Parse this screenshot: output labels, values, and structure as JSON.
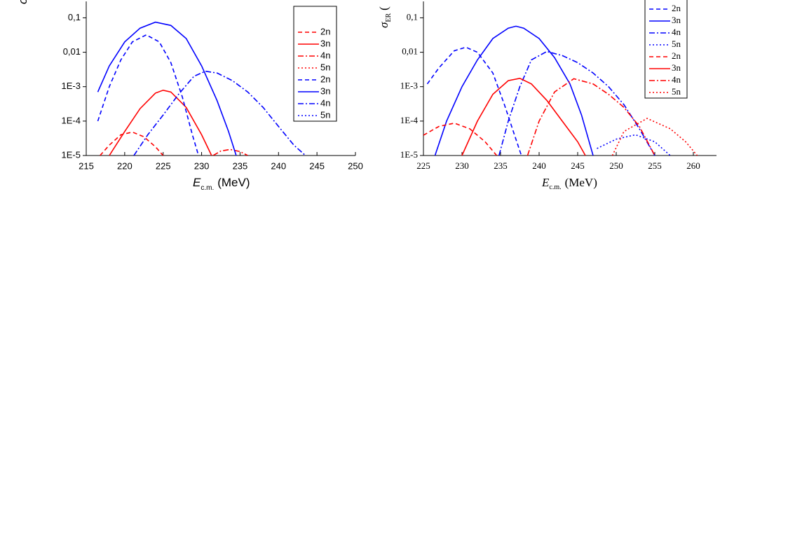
{
  "chart_data": [
    {
      "type": "line",
      "log_y": true,
      "legend": "upper right",
      "xlabel": "E",
      "xlabel_sub": "c.m.",
      "xlabel_unit": "(MeV)",
      "ylabel": "σ",
      "xlim": [
        215,
        250
      ],
      "xticks": [
        215,
        220,
        225,
        230,
        235,
        240,
        245,
        250
      ],
      "ylim": [
        1e-05,
        0.3
      ],
      "yticks": [
        {
          "value": 1e-05,
          "label": "1E-5"
        },
        {
          "value": 0.0001,
          "label": "1E-4"
        },
        {
          "value": 0.001,
          "label": "1E-3"
        },
        {
          "value": 0.01,
          "label": "0,01"
        },
        {
          "value": 0.1,
          "label": "0,1"
        }
      ],
      "series": [
        {
          "name": "2n",
          "color": "#ff0000",
          "style": "dash",
          "x": [
            216.8,
            218,
            219.5,
            221,
            222.5,
            224,
            225
          ],
          "values": [
            1e-05,
            2e-05,
            4e-05,
            4.8e-05,
            3.5e-05,
            1.8e-05,
            1e-05
          ]
        },
        {
          "name": "3n",
          "color": "#ff0000",
          "style": "solid",
          "x": [
            218,
            220,
            222,
            224,
            225,
            226,
            228,
            230,
            231.3
          ],
          "values": [
            1e-05,
            5e-05,
            0.00023,
            0.00065,
            0.00079,
            0.0007,
            0.00025,
            4e-05,
            1e-05
          ]
        },
        {
          "name": "4n",
          "color": "#ff0000",
          "style": "dashdot",
          "x": [
            231.5,
            232.5,
            233.7,
            235,
            236
          ],
          "values": [
            1e-05,
            1.35e-05,
            1.5e-05,
            1.3e-05,
            1e-05
          ]
        },
        {
          "name": "5n",
          "color": "#ff0000",
          "style": "dot",
          "x": [],
          "values": []
        },
        {
          "name": "2n",
          "color": "#0000ff",
          "style": "dash",
          "x": [
            216.5,
            218,
            219.5,
            221,
            222.8,
            224.5,
            226,
            227.5,
            228.8,
            229.6
          ],
          "values": [
            0.0001,
            0.001,
            0.006,
            0.02,
            0.032,
            0.02,
            0.005,
            0.0005,
            4e-05,
            1e-05
          ]
        },
        {
          "name": "3n",
          "color": "#0000ff",
          "style": "solid",
          "x": [
            216.5,
            218,
            220,
            222,
            224,
            226,
            228,
            230,
            232,
            233.5,
            234.5
          ],
          "values": [
            0.0007,
            0.004,
            0.02,
            0.05,
            0.075,
            0.06,
            0.025,
            0.004,
            0.0004,
            5e-05,
            1e-05
          ]
        },
        {
          "name": "4n",
          "color": "#0000ff",
          "style": "dashdot",
          "x": [
            221.2,
            223,
            225,
            227,
            229,
            230.5,
            232,
            234,
            236,
            238,
            240,
            242,
            243.5
          ],
          "values": [
            1e-05,
            4e-05,
            0.00015,
            0.0006,
            0.002,
            0.0028,
            0.0025,
            0.0015,
            0.0007,
            0.00025,
            7e-05,
            2e-05,
            1e-05
          ]
        },
        {
          "name": "5n",
          "color": "#0000ff",
          "style": "dot",
          "x": [],
          "values": []
        }
      ]
    },
    {
      "type": "line",
      "log_y": true,
      "legend": "upper right",
      "xlabel": "E",
      "xlabel_sub": "c.m.",
      "xlabel_unit": "(MeV)",
      "ylabel": "σ",
      "ylabel_sub": "ER",
      "ylabel_rest": "(",
      "xlim": [
        225,
        263
      ],
      "xticks": [
        225,
        230,
        235,
        240,
        245,
        250,
        255,
        260
      ],
      "ylim": [
        1e-05,
        0.3
      ],
      "yticks": [
        {
          "value": 1e-05,
          "label": "1E-5"
        },
        {
          "value": 0.0001,
          "label": "1E-4"
        },
        {
          "value": 0.001,
          "label": "1E-3"
        },
        {
          "value": 0.01,
          "label": "0,01"
        },
        {
          "value": 0.1,
          "label": "0,1"
        }
      ],
      "series": [
        {
          "name": "2n",
          "color": "#0000ff",
          "style": "dash",
          "x": [
            225.5,
            227,
            229,
            230.5,
            232,
            234,
            235.5,
            236.8,
            237.7
          ],
          "values": [
            0.0012,
            0.0035,
            0.011,
            0.014,
            0.01,
            0.0025,
            0.0003,
            4e-05,
            1e-05
          ]
        },
        {
          "name": "3n",
          "color": "#0000ff",
          "style": "solid",
          "x": [
            226.5,
            228,
            230,
            232,
            234,
            236,
            237,
            238,
            240,
            242,
            244,
            245.5,
            247
          ],
          "values": [
            1e-05,
            0.0001,
            0.001,
            0.006,
            0.025,
            0.05,
            0.057,
            0.05,
            0.025,
            0.007,
            0.0012,
            0.00015,
            1e-05
          ]
        },
        {
          "name": "4n",
          "color": "#0000ff",
          "style": "dashdot",
          "x": [
            234.8,
            236,
            237.5,
            239,
            241,
            243,
            245,
            247,
            249,
            251,
            253,
            255
          ],
          "values": [
            1e-05,
            0.0001,
            0.001,
            0.006,
            0.0105,
            0.008,
            0.005,
            0.0025,
            0.001,
            0.0003,
            6e-05,
            1e-05
          ]
        },
        {
          "name": "5n",
          "color": "#0000ff",
          "style": "dot",
          "x": [
            247.5,
            250,
            252.5,
            255,
            257
          ],
          "values": [
            1.6e-05,
            3e-05,
            4e-05,
            2.5e-05,
            1e-05
          ]
        },
        {
          "name": "2n",
          "color": "#ff0000",
          "style": "dash",
          "x": [
            225,
            227,
            229,
            231,
            233,
            234.5
          ],
          "values": [
            3.9e-05,
            7e-05,
            8.7e-05,
            6e-05,
            2.5e-05,
            1e-05
          ]
        },
        {
          "name": "3n",
          "color": "#ff0000",
          "style": "solid",
          "x": [
            230,
            232,
            234,
            236,
            237.5,
            239,
            241,
            243,
            245,
            246
          ],
          "values": [
            1e-05,
            0.0001,
            0.0006,
            0.0015,
            0.00175,
            0.0012,
            0.0004,
            0.0001,
            2.5e-05,
            1e-05
          ]
        },
        {
          "name": "4n",
          "color": "#ff0000",
          "style": "dashdot",
          "x": [
            238.5,
            240,
            242,
            244.5,
            247,
            249,
            251,
            253,
            255
          ],
          "values": [
            1e-05,
            0.0001,
            0.0007,
            0.0017,
            0.0012,
            0.0006,
            0.00025,
            7e-05,
            1e-05
          ]
        },
        {
          "name": "5n",
          "color": "#ff0000",
          "style": "dot",
          "x": [
            249.5,
            251,
            254,
            257,
            259,
            260.5
          ],
          "values": [
            1e-05,
            5e-05,
            0.00012,
            6e-05,
            2.5e-05,
            1e-05
          ]
        }
      ]
    }
  ]
}
